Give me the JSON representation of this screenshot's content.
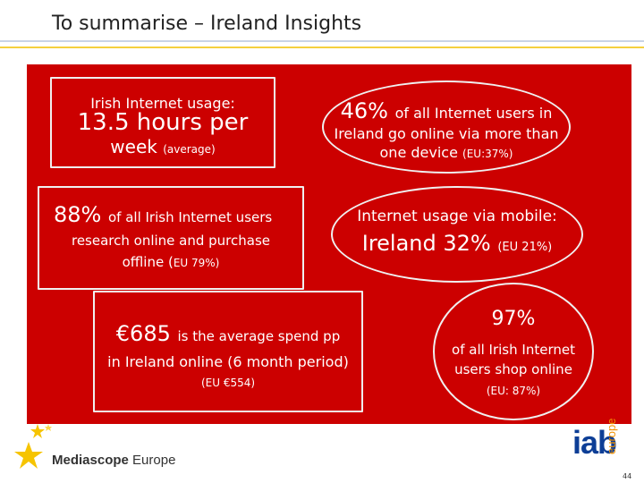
{
  "title": "To summarise – Ireland Insights",
  "colors": {
    "panel": "#cc0000",
    "box_border": "#f0f0f0",
    "iab_blue": "#0d3e96",
    "iab_orange": "#f39200",
    "star_yellow": "#f6c400"
  },
  "boxes": {
    "usage": {
      "line1": "Irish Internet usage:",
      "line2": "13.5 hours per",
      "line3": "week",
      "line3_small": "(average)"
    },
    "devices": {
      "big": "46%",
      "line1_rest": "of all Internet users in",
      "line2": "Ireland go online via more than",
      "line3": "one device",
      "line3_small": "(EU:37%)"
    },
    "research": {
      "big": "88%",
      "line1_rest": "of all Irish Internet users",
      "line2": "research online and purchase",
      "line3": "offline (",
      "line3_small": "EU 79%)"
    },
    "mobile": {
      "line1": "Internet usage via mobile:",
      "line2": "Ireland 32%",
      "line2_small": "(EU 21%)"
    },
    "spend": {
      "big": "€685",
      "line1_rest": "is the average spend pp",
      "line2": "in Ireland online (6 month period)",
      "line3": "(EU €554)"
    },
    "shop": {
      "big": "97%",
      "line2": "of all Irish Internet",
      "line3": "users shop online",
      "line4": "(EU: 87%)"
    }
  },
  "footer": {
    "brand_bold": "Mediascope",
    "brand_regular": " Europe",
    "iab_word": "iab",
    "iab_europe": "europe",
    "page_number": "44",
    "icons": [
      "stars-icon",
      "iab-logo"
    ]
  }
}
